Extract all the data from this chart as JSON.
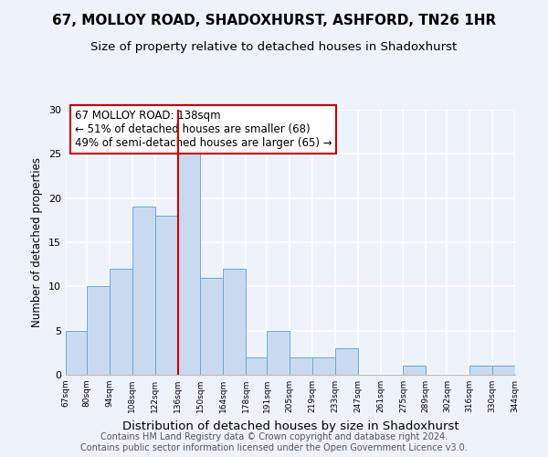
{
  "title": "67, MOLLOY ROAD, SHADOXHURST, ASHFORD, TN26 1HR",
  "subtitle": "Size of property relative to detached houses in Shadoxhurst",
  "xlabel": "Distribution of detached houses by size in Shadoxhurst",
  "ylabel": "Number of detached properties",
  "bin_edges": [
    67,
    80,
    94,
    108,
    122,
    136,
    150,
    164,
    178,
    191,
    205,
    219,
    233,
    247,
    261,
    275,
    289,
    302,
    316,
    330,
    344
  ],
  "bar_heights": [
    5,
    10,
    12,
    19,
    18,
    25,
    11,
    12,
    2,
    5,
    2,
    2,
    3,
    0,
    0,
    1,
    0,
    0,
    1,
    1
  ],
  "bar_color": "#c9daf0",
  "bar_edge_color": "#6fa8d4",
  "vline_x": 136,
  "vline_color": "#cc0000",
  "annotation_text": "67 MOLLOY ROAD: 138sqm\n← 51% of detached houses are smaller (68)\n49% of semi-detached houses are larger (65) →",
  "annotation_box_facecolor": "white",
  "annotation_box_edgecolor": "#cc0000",
  "ylim": [
    0,
    30
  ],
  "yticks": [
    0,
    5,
    10,
    15,
    20,
    25,
    30
  ],
  "tick_labels": [
    "67sqm",
    "80sqm",
    "94sqm",
    "108sqm",
    "122sqm",
    "136sqm",
    "150sqm",
    "164sqm",
    "178sqm",
    "191sqm",
    "205sqm",
    "219sqm",
    "233sqm",
    "247sqm",
    "261sqm",
    "275sqm",
    "289sqm",
    "302sqm",
    "316sqm",
    "330sqm",
    "344sqm"
  ],
  "footer_text": "Contains HM Land Registry data © Crown copyright and database right 2024.\nContains public sector information licensed under the Open Government Licence v3.0.",
  "background_color": "#eef2fb",
  "grid_color": "white",
  "title_fontsize": 11,
  "subtitle_fontsize": 9.5,
  "xlabel_fontsize": 9.5,
  "ylabel_fontsize": 8.5,
  "annotation_fontsize": 8.5,
  "footer_fontsize": 7
}
